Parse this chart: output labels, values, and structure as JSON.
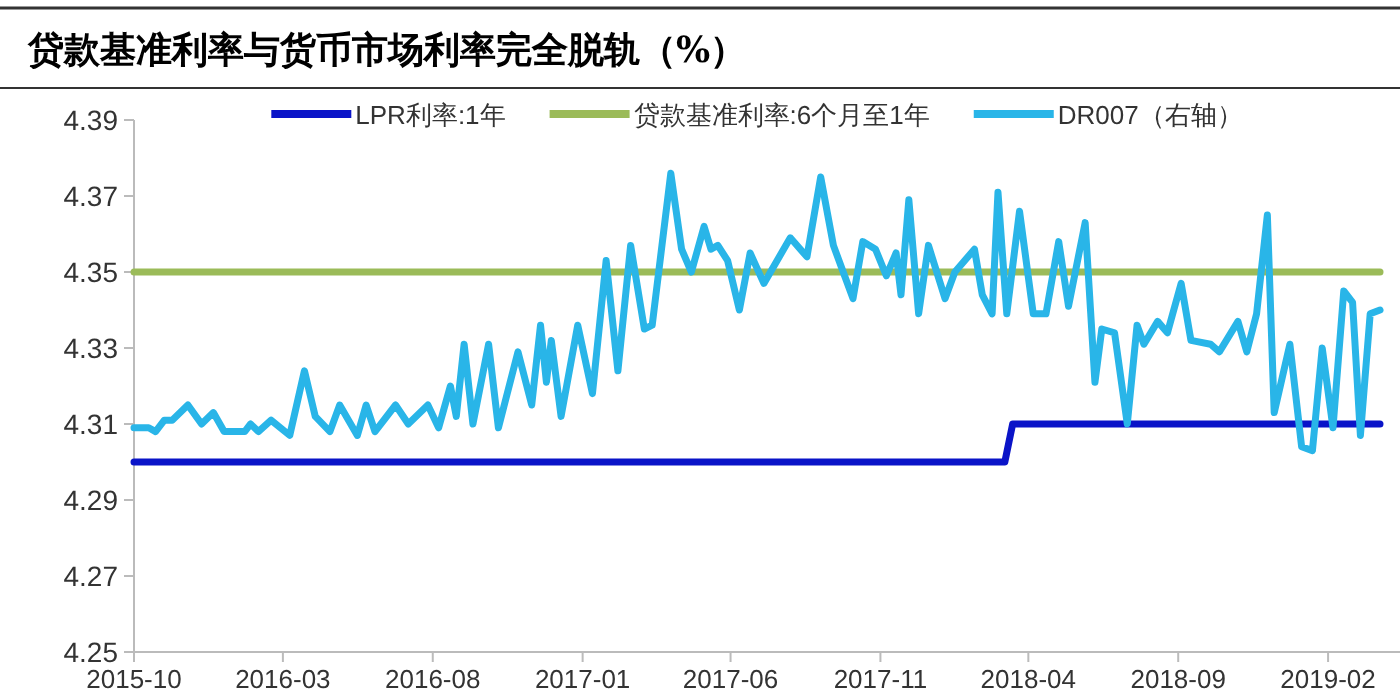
{
  "chart_data": {
    "type": "line",
    "title": "贷款基准利率与货币市场利率完全脱轨（%）",
    "xlim": [
      "2015-10-01",
      "2019-03-26"
    ],
    "ylim": [
      4.25,
      4.39
    ],
    "xticks": [
      "2015-10",
      "2016-03",
      "2016-08",
      "2017-01",
      "2017-06",
      "2017-11",
      "2018-04",
      "2018-09",
      "2019-02"
    ],
    "yticks": [
      4.25,
      4.27,
      4.29,
      4.31,
      4.33,
      4.35,
      4.37,
      4.39
    ],
    "legend": "top",
    "series": [
      {
        "name": "LPR利率:1年",
        "color": "#0a14c8",
        "x": [
          "2015-10-01",
          "2018-03-08",
          "2018-03-16",
          "2019-03-26"
        ],
        "values": [
          4.3,
          4.3,
          4.31,
          4.31
        ]
      },
      {
        "name": "贷款基准利率:6个月至1年",
        "color": "#9bbb59",
        "x": [
          "2015-10-01",
          "2019-03-26"
        ],
        "values": [
          4.35,
          4.35
        ]
      },
      {
        "name": "DR007（右轴）",
        "color": "#29b5e8",
        "x": [
          "2015-10-01",
          "2015-10-16",
          "2015-10-23",
          "2015-11-01",
          "2015-11-09",
          "2015-11-25",
          "2015-12-09",
          "2015-12-21",
          "2016-01-01",
          "2016-01-22",
          "2016-01-28",
          "2016-02-05",
          "2016-02-18",
          "2016-03-08",
          "2016-03-23",
          "2016-04-03",
          "2016-04-18",
          "2016-04-28",
          "2016-05-16",
          "2016-05-25",
          "2016-06-03",
          "2016-06-24",
          "2016-07-07",
          "2016-07-27",
          "2016-08-07",
          "2016-08-19",
          "2016-08-25",
          "2016-09-02",
          "2016-09-11",
          "2016-09-27",
          "2016-10-07",
          "2016-10-27",
          "2016-11-10",
          "2016-11-19",
          "2016-11-25",
          "2016-11-30",
          "2016-12-10",
          "2016-12-27",
          "2017-01-11",
          "2017-01-25",
          "2017-02-06",
          "2017-02-19",
          "2017-03-05",
          "2017-03-13",
          "2017-04-01",
          "2017-04-12",
          "2017-04-22",
          "2017-05-05",
          "2017-05-12",
          "2017-05-19",
          "2017-05-29",
          "2017-06-10",
          "2017-06-21",
          "2017-07-05",
          "2017-08-01",
          "2017-08-18",
          "2017-09-01",
          "2017-09-14",
          "2017-09-24",
          "2017-10-04",
          "2017-10-14",
          "2017-10-27",
          "2017-11-07",
          "2017-11-17",
          "2017-11-22",
          "2017-11-30",
          "2017-12-10",
          "2017-12-20",
          "2018-01-06",
          "2018-01-16",
          "2018-02-05",
          "2018-02-13",
          "2018-02-23",
          "2018-03-01",
          "2018-03-10",
          "2018-03-23",
          "2018-04-06",
          "2018-04-19",
          "2018-05-02",
          "2018-05-12",
          "2018-05-29",
          "2018-06-08",
          "2018-06-15",
          "2018-06-28",
          "2018-07-11",
          "2018-07-21",
          "2018-07-28",
          "2018-08-11",
          "2018-08-21",
          "2018-09-04",
          "2018-09-14",
          "2018-10-04",
          "2018-10-13",
          "2018-11-01",
          "2018-11-10",
          "2018-11-20",
          "2018-12-01",
          "2018-12-08",
          "2018-12-24",
          "2019-01-05",
          "2019-01-16",
          "2019-01-26",
          "2019-02-06",
          "2019-02-17",
          "2019-02-26",
          "2019-03-06",
          "2019-03-16",
          "2019-03-26"
        ],
        "values": [
          4.309,
          4.309,
          4.308,
          4.311,
          4.311,
          4.315,
          4.31,
          4.313,
          4.308,
          4.308,
          4.31,
          4.308,
          4.311,
          4.307,
          4.324,
          4.312,
          4.308,
          4.315,
          4.307,
          4.315,
          4.308,
          4.315,
          4.31,
          4.315,
          4.309,
          4.32,
          4.312,
          4.331,
          4.31,
          4.331,
          4.309,
          4.329,
          4.315,
          4.336,
          4.321,
          4.332,
          4.312,
          4.336,
          4.318,
          4.353,
          4.324,
          4.357,
          4.335,
          4.336,
          4.376,
          4.356,
          4.35,
          4.362,
          4.356,
          4.357,
          4.353,
          4.34,
          4.355,
          4.347,
          4.359,
          4.354,
          4.375,
          4.357,
          4.35,
          4.343,
          4.358,
          4.356,
          4.349,
          4.355,
          4.344,
          4.369,
          4.339,
          4.357,
          4.343,
          4.35,
          4.356,
          4.344,
          4.339,
          4.371,
          4.339,
          4.366,
          4.339,
          4.339,
          4.358,
          4.341,
          4.363,
          4.321,
          4.335,
          4.334,
          4.31,
          4.336,
          4.331,
          4.337,
          4.334,
          4.347,
          4.332,
          4.331,
          4.329,
          4.337,
          4.329,
          4.339,
          4.365,
          4.313,
          4.331,
          4.304,
          4.303,
          4.33,
          4.309,
          4.345,
          4.342,
          4.307,
          4.339,
          4.34
        ]
      }
    ]
  }
}
